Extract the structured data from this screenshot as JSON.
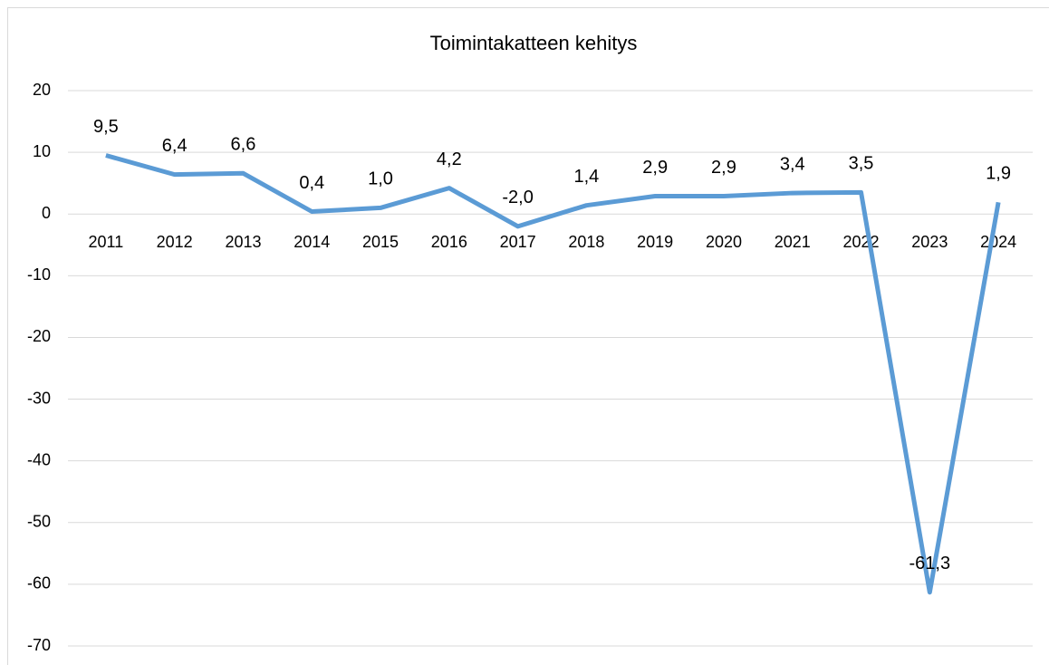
{
  "chart_data": {
    "type": "line",
    "title": "Toimintakatteen kehitys",
    "categories": [
      "2011",
      "2012",
      "2013",
      "2014",
      "2015",
      "2016",
      "2017",
      "2018",
      "2019",
      "2020",
      "2021",
      "2022",
      "2023",
      "2024"
    ],
    "values": [
      9.5,
      6.4,
      6.6,
      0.4,
      1.0,
      4.2,
      -2.0,
      1.4,
      2.9,
      2.9,
      3.4,
      3.5,
      -61.3,
      1.9
    ],
    "value_labels": [
      "9,5",
      "6,4",
      "6,6",
      "0,4",
      "1,0",
      "4,2",
      "-2,0",
      "1,4",
      "2,9",
      "2,9",
      "3,4",
      "3,5",
      "-61,3",
      "1,9"
    ],
    "color": "#5b9bd5",
    "ylim": [
      -70,
      20
    ],
    "yticks": [
      -70,
      -60,
      -50,
      -40,
      -30,
      -20,
      -10,
      0,
      10,
      20
    ],
    "grid": true
  }
}
